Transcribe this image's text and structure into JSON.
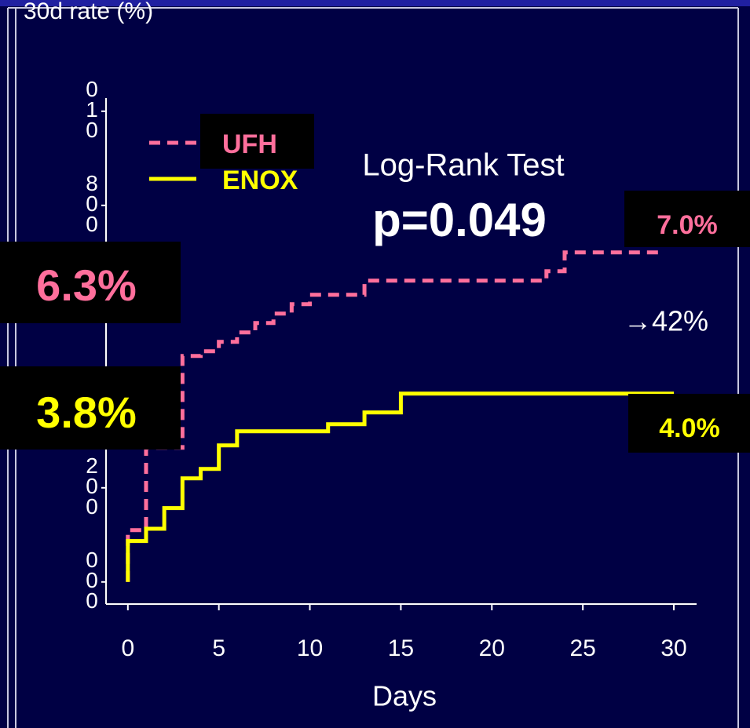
{
  "chart_data": {
    "type": "step",
    "title": "30d rate (%)",
    "xlabel": "Days",
    "xlim": [
      -1.2,
      31.25
    ],
    "xticks": [
      0,
      5,
      10,
      15,
      20,
      25,
      30
    ],
    "ylim": [
      -0.0047,
      0.1028
    ],
    "yticks": [
      {
        "value": 0.1,
        "label": [
          "0",
          "1",
          "0"
        ]
      },
      {
        "value": 0.08,
        "label": [
          "8",
          "0",
          "0"
        ]
      },
      {
        "value": 0.02,
        "label": [
          "2",
          "0",
          "0"
        ]
      },
      {
        "value": 0,
        "label": [
          "0",
          "0",
          "0"
        ]
      }
    ],
    "grid": false,
    "series": [
      {
        "name": "UFH",
        "color": "#ff6f9c",
        "dashed": true,
        "x": [
          0,
          0,
          1,
          3,
          4,
          5,
          6,
          7,
          8,
          9,
          10,
          13,
          23,
          24,
          29.5
        ],
        "values": [
          0,
          0.011,
          0.0285,
          0.048,
          0.049,
          0.051,
          0.053,
          0.055,
          0.057,
          0.059,
          0.061,
          0.064,
          0.066,
          0.07,
          0.07
        ]
      },
      {
        "name": "ENOX",
        "color": "#ffff00",
        "dashed": false,
        "x": [
          0,
          0,
          1,
          2,
          3,
          4,
          5,
          6,
          11,
          13,
          15,
          30
        ],
        "values": [
          0,
          0.0087,
          0.0113,
          0.0157,
          0.022,
          0.024,
          0.029,
          0.032,
          0.0335,
          0.036,
          0.04,
          0.04
        ]
      }
    ],
    "annotations": {
      "test": "Log-Rank Test",
      "p": "p=0.049",
      "ufh_end": "7.0%",
      "ufh_start": "6.3%",
      "enox_start": "3.8%",
      "enox_end": "4.0%",
      "reduction": "→42%"
    }
  }
}
